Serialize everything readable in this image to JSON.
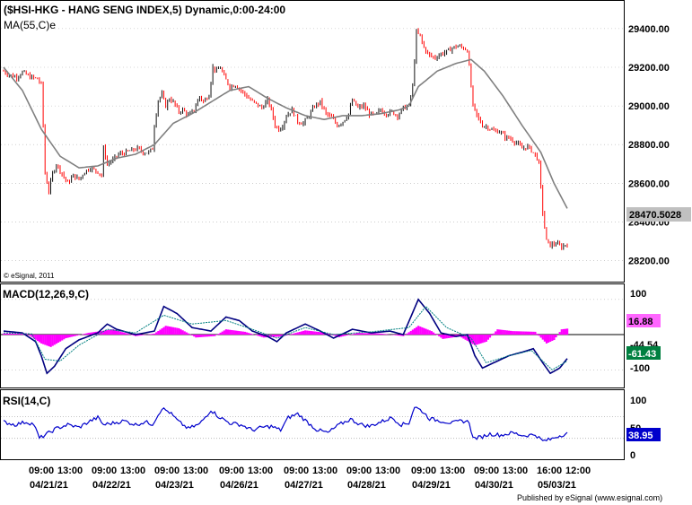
{
  "colors": {
    "background": "#ffffff",
    "border": "#000000",
    "grid": "#b0b0b0",
    "up_bar": "#101010",
    "down_bar": "#ff0000",
    "ma_line": "#808080",
    "macd_line": "#000080",
    "signal_line": "#008080",
    "histogram": "#ff00ff",
    "rsi_line": "#0000cc",
    "price_badge": "#c0c0c0",
    "macd_badge": "#ff66ff",
    "signal_badge": "#008040",
    "rsi_badge": "#0000cc"
  },
  "chart_data": [
    {
      "type": "candlestick",
      "title": "($HSI-HKG - HANG SENG INDEX,5) Dynamic,0:00-24:00",
      "indicator_label": "MA(55,C)e",
      "copyright": "© eSignal, 2011",
      "last_price_label": "28470.5028",
      "y_ticks": [
        "29400.00",
        "29200.00",
        "29000.00",
        "28800.00",
        "28600.00",
        "28400.00",
        "28200.00"
      ],
      "ylim": [
        28110,
        29520
      ],
      "date_groups": [
        "04/21/21",
        "04/22/21",
        "04/23/21",
        "04/26/21",
        "04/27/21",
        "04/28/21",
        "04/29/21",
        "04/30/21",
        "05/03/21"
      ],
      "price_path": [
        [
          0,
          29180
        ],
        [
          3,
          29160
        ],
        [
          7,
          29150
        ],
        [
          10,
          29175
        ],
        [
          14,
          29150
        ],
        [
          18,
          29140
        ],
        [
          20,
          29110
        ],
        [
          21,
          28900
        ],
        [
          22,
          28650
        ],
        [
          24,
          28560
        ],
        [
          26,
          28650
        ],
        [
          28,
          28700
        ],
        [
          31,
          28650
        ],
        [
          34,
          28600
        ],
        [
          37,
          28640
        ],
        [
          40,
          28620
        ],
        [
          43,
          28660
        ],
        [
          46,
          28680
        ],
        [
          50,
          28660
        ],
        [
          52,
          28640
        ],
        [
          53,
          28780
        ],
        [
          55,
          28700
        ],
        [
          58,
          28720
        ],
        [
          61,
          28750
        ],
        [
          65,
          28760
        ],
        [
          68,
          28770
        ],
        [
          71,
          28780
        ],
        [
          74,
          28760
        ],
        [
          77,
          28760
        ],
        [
          79,
          28780
        ],
        [
          80,
          28900
        ],
        [
          82,
          29030
        ],
        [
          84,
          29060
        ],
        [
          86,
          29000
        ],
        [
          88,
          29040
        ],
        [
          90,
          29020
        ],
        [
          93,
          28970
        ],
        [
          95,
          28980
        ],
        [
          98,
          28950
        ],
        [
          101,
          28980
        ],
        [
          104,
          29050
        ],
        [
          106,
          29020
        ],
        [
          109,
          29060
        ],
        [
          111,
          29200
        ],
        [
          113,
          29180
        ],
        [
          115,
          29200
        ],
        [
          117,
          29150
        ],
        [
          120,
          29100
        ],
        [
          123,
          29110
        ],
        [
          126,
          29080
        ],
        [
          128,
          29060
        ],
        [
          131,
          29030
        ],
        [
          134,
          29010
        ],
        [
          137,
          28990
        ],
        [
          140,
          29030
        ],
        [
          142,
          28980
        ],
        [
          144,
          28900
        ],
        [
          146,
          28880
        ],
        [
          148,
          28900
        ],
        [
          150,
          28950
        ],
        [
          153,
          28980
        ],
        [
          156,
          28920
        ],
        [
          159,
          28910
        ],
        [
          162,
          28950
        ],
        [
          165,
          29000
        ],
        [
          168,
          29020
        ],
        [
          171,
          28960
        ],
        [
          174,
          28940
        ],
        [
          177,
          28900
        ],
        [
          180,
          28920
        ],
        [
          183,
          28960
        ],
        [
          185,
          29030
        ],
        [
          188,
          28990
        ],
        [
          191,
          29000
        ],
        [
          194,
          28960
        ],
        [
          197,
          28950
        ],
        [
          200,
          28980
        ],
        [
          203,
          28960
        ],
        [
          206,
          28970
        ],
        [
          209,
          28950
        ],
        [
          212,
          28990
        ],
        [
          215,
          29000
        ],
        [
          217,
          29100
        ],
        [
          219,
          29380
        ],
        [
          221,
          29360
        ],
        [
          223,
          29300
        ],
        [
          226,
          29260
        ],
        [
          229,
          29250
        ],
        [
          232,
          29270
        ],
        [
          235,
          29280
        ],
        [
          238,
          29300
        ],
        [
          241,
          29310
        ],
        [
          244,
          29300
        ],
        [
          246,
          29290
        ],
        [
          247,
          29200
        ],
        [
          249,
          29000
        ],
        [
          251,
          28950
        ],
        [
          254,
          28900
        ],
        [
          257,
          28890
        ],
        [
          260,
          28870
        ],
        [
          263,
          28870
        ],
        [
          266,
          28840
        ],
        [
          269,
          28830
        ],
        [
          272,
          28810
        ],
        [
          275,
          28780
        ],
        [
          278,
          28790
        ],
        [
          281,
          28760
        ],
        [
          283,
          28730
        ],
        [
          284,
          28700
        ],
        [
          286,
          28450
        ],
        [
          288,
          28300
        ],
        [
          290,
          28280
        ],
        [
          293,
          28290
        ],
        [
          296,
          28270
        ],
        [
          299,
          28290
        ]
      ],
      "ma_path": [
        [
          0,
          29200
        ],
        [
          10,
          29080
        ],
        [
          20,
          28880
        ],
        [
          30,
          28740
        ],
        [
          40,
          28680
        ],
        [
          50,
          28690
        ],
        [
          60,
          28730
        ],
        [
          70,
          28750
        ],
        [
          80,
          28800
        ],
        [
          90,
          28910
        ],
        [
          100,
          28960
        ],
        [
          110,
          29020
        ],
        [
          120,
          29080
        ],
        [
          130,
          29100
        ],
        [
          140,
          29040
        ],
        [
          150,
          28990
        ],
        [
          160,
          28950
        ],
        [
          170,
          28930
        ],
        [
          180,
          28950
        ],
        [
          190,
          28950
        ],
        [
          200,
          28960
        ],
        [
          210,
          28980
        ],
        [
          215,
          29000
        ],
        [
          220,
          29100
        ],
        [
          230,
          29180
        ],
        [
          240,
          29220
        ],
        [
          248,
          29240
        ],
        [
          255,
          29180
        ],
        [
          265,
          29050
        ],
        [
          275,
          28900
        ],
        [
          285,
          28760
        ],
        [
          292,
          28600
        ],
        [
          299,
          28470
        ]
      ]
    },
    {
      "type": "macd",
      "label": "MACD(12,26,9,C)",
      "y_ticks": [
        "100",
        "-100"
      ],
      "macd_value_label": "16.88",
      "signal_value_label": "-61.43",
      "obscured_label": "-44.54",
      "ylim": [
        -140,
        130
      ],
      "macd_path": [
        [
          0,
          10
        ],
        [
          10,
          5
        ],
        [
          17,
          -20
        ],
        [
          20,
          -60
        ],
        [
          23,
          -110
        ],
        [
          27,
          -90
        ],
        [
          33,
          -40
        ],
        [
          40,
          -15
        ],
        [
          50,
          5
        ],
        [
          55,
          30
        ],
        [
          60,
          15
        ],
        [
          70,
          0
        ],
        [
          80,
          10
        ],
        [
          85,
          80
        ],
        [
          92,
          60
        ],
        [
          100,
          20
        ],
        [
          110,
          10
        ],
        [
          118,
          50
        ],
        [
          125,
          40
        ],
        [
          132,
          10
        ],
        [
          140,
          -5
        ],
        [
          145,
          -20
        ],
        [
          150,
          5
        ],
        [
          160,
          30
        ],
        [
          168,
          10
        ],
        [
          175,
          -10
        ],
        [
          185,
          15
        ],
        [
          195,
          5
        ],
        [
          205,
          10
        ],
        [
          212,
          0
        ],
        [
          220,
          100
        ],
        [
          226,
          60
        ],
        [
          232,
          5
        ],
        [
          240,
          -5
        ],
        [
          246,
          0
        ],
        [
          250,
          -60
        ],
        [
          254,
          -95
        ],
        [
          260,
          -80
        ],
        [
          268,
          -60
        ],
        [
          275,
          -50
        ],
        [
          281,
          -40
        ],
        [
          286,
          -80
        ],
        [
          290,
          -110
        ],
        [
          295,
          -95
        ],
        [
          299,
          -68
        ]
      ],
      "signal_path": [
        [
          0,
          5
        ],
        [
          15,
          2
        ],
        [
          22,
          -70
        ],
        [
          30,
          -75
        ],
        [
          40,
          -30
        ],
        [
          55,
          15
        ],
        [
          70,
          5
        ],
        [
          85,
          55
        ],
        [
          100,
          30
        ],
        [
          118,
          40
        ],
        [
          132,
          15
        ],
        [
          145,
          -10
        ],
        [
          160,
          20
        ],
        [
          175,
          0
        ],
        [
          195,
          8
        ],
        [
          215,
          20
        ],
        [
          224,
          80
        ],
        [
          235,
          20
        ],
        [
          248,
          -10
        ],
        [
          256,
          -80
        ],
        [
          268,
          -60
        ],
        [
          280,
          -45
        ],
        [
          291,
          -100
        ],
        [
          299,
          -75
        ]
      ],
      "histogram_path": [
        [
          0,
          3
        ],
        [
          12,
          4
        ],
        [
          20,
          -25
        ],
        [
          25,
          -35
        ],
        [
          33,
          -10
        ],
        [
          45,
          5
        ],
        [
          58,
          15
        ],
        [
          70,
          -4
        ],
        [
          80,
          3
        ],
        [
          86,
          25
        ],
        [
          93,
          18
        ],
        [
          102,
          -8
        ],
        [
          112,
          -4
        ],
        [
          118,
          15
        ],
        [
          128,
          8
        ],
        [
          138,
          -8
        ],
        [
          148,
          -5
        ],
        [
          160,
          12
        ],
        [
          170,
          6
        ],
        [
          178,
          -7
        ],
        [
          188,
          5
        ],
        [
          200,
          3
        ],
        [
          212,
          -4
        ],
        [
          220,
          25
        ],
        [
          227,
          10
        ],
        [
          233,
          -12
        ],
        [
          242,
          -5
        ],
        [
          250,
          -30
        ],
        [
          256,
          -20
        ],
        [
          262,
          15
        ],
        [
          270,
          10
        ],
        [
          282,
          8
        ],
        [
          288,
          -25
        ],
        [
          292,
          -15
        ],
        [
          296,
          15
        ],
        [
          299,
          17
        ]
      ]
    },
    {
      "type": "rsi",
      "label": "RSI(14,C)",
      "y_ticks": [
        "100",
        "50",
        "0"
      ],
      "rsi_value_label": "38.95",
      "ylim": [
        -5,
        110
      ],
      "rsi_path": [
        [
          0,
          60
        ],
        [
          6,
          55
        ],
        [
          12,
          60
        ],
        [
          16,
          56
        ],
        [
          19,
          30
        ],
        [
          24,
          40
        ],
        [
          28,
          48
        ],
        [
          34,
          55
        ],
        [
          40,
          50
        ],
        [
          46,
          62
        ],
        [
          50,
          68
        ],
        [
          53,
          55
        ],
        [
          58,
          58
        ],
        [
          64,
          62
        ],
        [
          70,
          55
        ],
        [
          75,
          60
        ],
        [
          79,
          56
        ],
        [
          84,
          85
        ],
        [
          88,
          78
        ],
        [
          93,
          60
        ],
        [
          98,
          48
        ],
        [
          104,
          56
        ],
        [
          110,
          82
        ],
        [
          114,
          70
        ],
        [
          120,
          58
        ],
        [
          126,
          55
        ],
        [
          132,
          45
        ],
        [
          137,
          50
        ],
        [
          142,
          52
        ],
        [
          147,
          45
        ],
        [
          151,
          68
        ],
        [
          156,
          75
        ],
        [
          161,
          60
        ],
        [
          166,
          46
        ],
        [
          172,
          40
        ],
        [
          178,
          55
        ],
        [
          184,
          65
        ],
        [
          189,
          56
        ],
        [
          194,
          52
        ],
        [
          200,
          60
        ],
        [
          206,
          68
        ],
        [
          211,
          55
        ],
        [
          215,
          58
        ],
        [
          218,
          88
        ],
        [
          222,
          80
        ],
        [
          226,
          66
        ],
        [
          232,
          62
        ],
        [
          238,
          58
        ],
        [
          243,
          62
        ],
        [
          247,
          60
        ],
        [
          249,
          30
        ],
        [
          253,
          32
        ],
        [
          258,
          38
        ],
        [
          264,
          36
        ],
        [
          270,
          40
        ],
        [
          276,
          35
        ],
        [
          282,
          37
        ],
        [
          286,
          25
        ],
        [
          290,
          28
        ],
        [
          294,
          34
        ],
        [
          299,
          39
        ]
      ]
    }
  ],
  "x_axis": {
    "time_labels": [
      "09:00",
      "13:00",
      "09:00",
      "13:00",
      "09:00",
      "13:00",
      "09:00",
      "13:00",
      "09:00",
      "13:00",
      "09:00",
      "13:00",
      "09:00",
      "13:00",
      "09:00",
      "13:00",
      "16:00",
      "12:00"
    ]
  },
  "footer": {
    "published": "Published by eSignal (www.esignal.com)"
  }
}
